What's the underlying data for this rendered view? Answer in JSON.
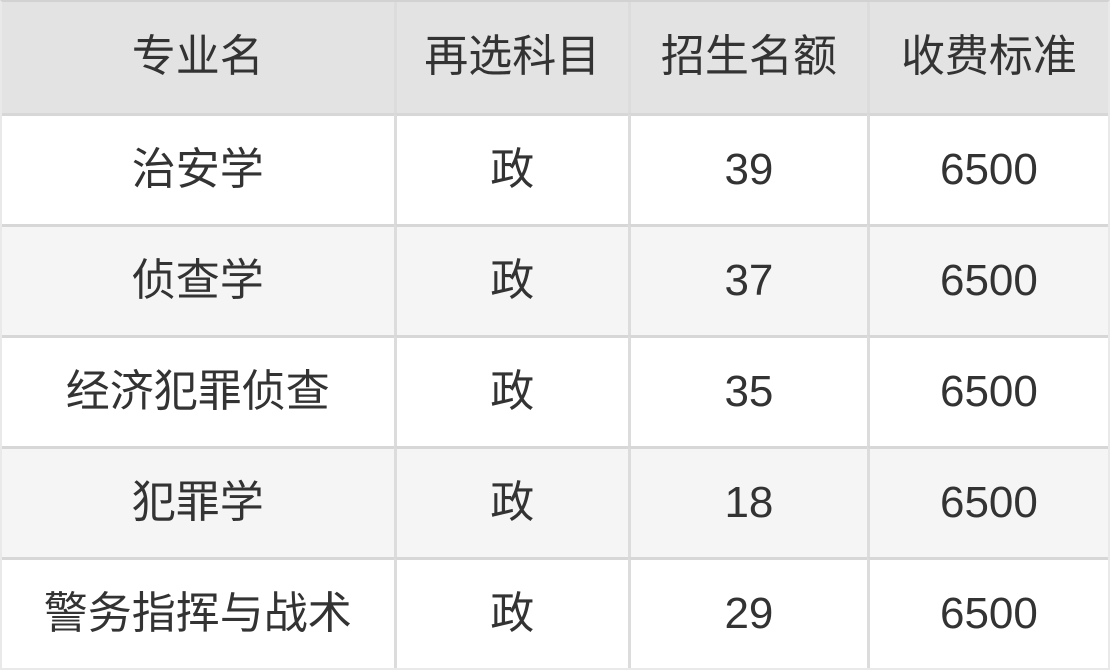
{
  "chart_data": {
    "type": "table",
    "columns": [
      "专业名",
      "再选科目",
      "招生名额",
      "收费标准"
    ],
    "rows": [
      [
        "治安学",
        "政",
        "39",
        "6500"
      ],
      [
        "侦查学",
        "政",
        "37",
        "6500"
      ],
      [
        "经济犯罪侦查",
        "政",
        "35",
        "6500"
      ],
      [
        "犯罪学",
        "政",
        "18",
        "6500"
      ],
      [
        "警务指挥与战术",
        "政",
        "29",
        "6500"
      ]
    ],
    "title": "",
    "legend_position": "none",
    "grid": true
  },
  "table": {
    "header": {
      "major": "专业名",
      "subject": "再选科目",
      "quota": "招生名额",
      "fee": "收费标准"
    },
    "rows": [
      {
        "major": "治安学",
        "subject": "政",
        "quota": "39",
        "fee": "6500"
      },
      {
        "major": "侦查学",
        "subject": "政",
        "quota": "37",
        "fee": "6500"
      },
      {
        "major": "经济犯罪侦查",
        "subject": "政",
        "quota": "35",
        "fee": "6500"
      },
      {
        "major": "犯罪学",
        "subject": "政",
        "quota": "18",
        "fee": "6500"
      },
      {
        "major": "警务指挥与战术",
        "subject": "政",
        "quota": "29",
        "fee": "6500"
      }
    ]
  },
  "colors": {
    "header_bg": "#e3e3e3",
    "stripe_row_bg": "#f5f5f5",
    "plain_row_bg": "#ffffff",
    "divider_horizontal": "#d7d7d7",
    "divider_vertical": "#dcdcdc",
    "outer_border": "#e9e9e9",
    "text": "#333333"
  }
}
